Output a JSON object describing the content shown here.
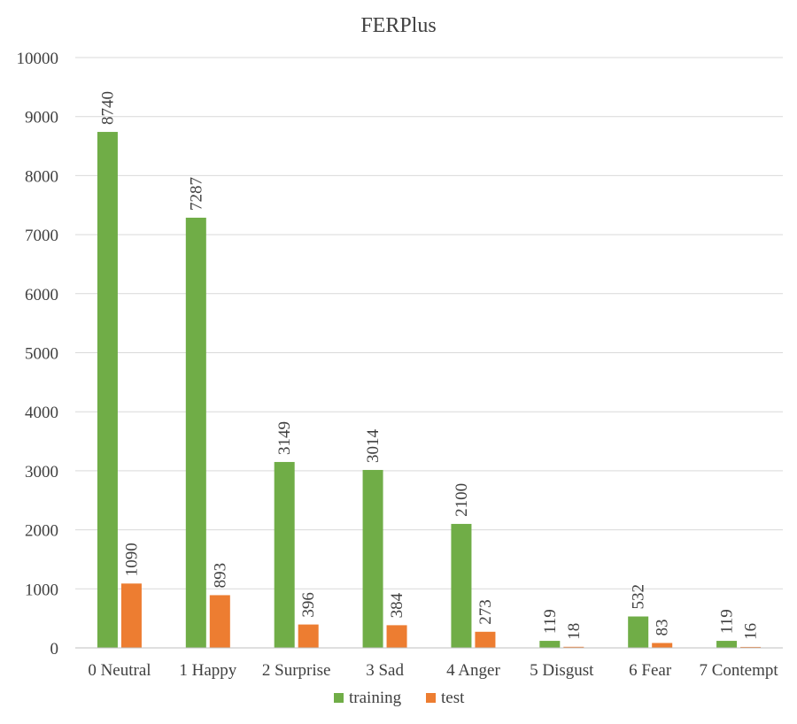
{
  "chart_data": {
    "type": "bar",
    "title": "FERPlus",
    "categories": [
      "0 Neutral",
      "1 Happy",
      "2 Surprise",
      "3 Sad",
      "4 Anger",
      "5 Disgust",
      "6 Fear",
      "7 Contempt"
    ],
    "series": [
      {
        "name": "training",
        "color": "#70ad47",
        "values": [
          8740,
          7287,
          3149,
          3014,
          2100,
          119,
          532,
          119
        ]
      },
      {
        "name": "test",
        "color": "#ed7d31",
        "values": [
          1090,
          893,
          396,
          384,
          273,
          18,
          83,
          16
        ]
      }
    ],
    "ylim": [
      0,
      10000
    ],
    "yticks": [
      0,
      1000,
      2000,
      3000,
      4000,
      5000,
      6000,
      7000,
      8000,
      9000,
      10000
    ],
    "xlabel": "",
    "ylabel": "",
    "grid": true,
    "legend_position": "bottom",
    "data_labels": true
  }
}
